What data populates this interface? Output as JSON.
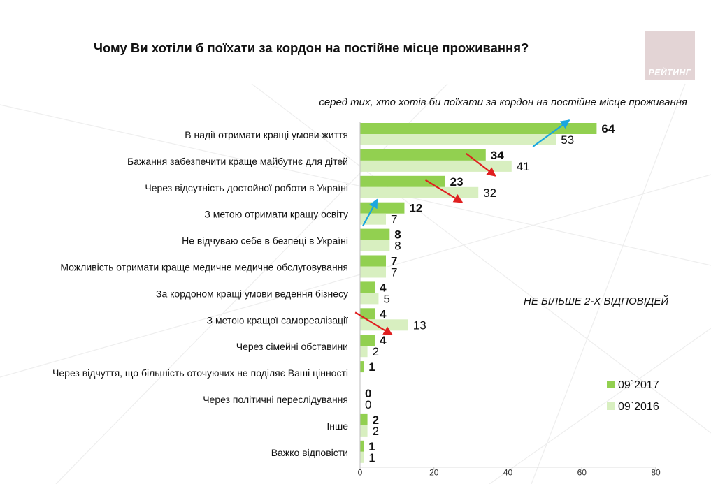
{
  "title": "Чому Ви хотіли б поїхати за кордон на постійне місце проживання?",
  "logo_text": "РЕЙТИНГ",
  "subtitle": "серед тих, хто хотів би поїхати за кордон на постійне місце проживання",
  "note": "НЕ БІЛЬШЕ 2-Х ВІДПОВІДЕЙ",
  "colors": {
    "series_2017": "#92d050",
    "series_2016": "#d8efc0",
    "arrow_up": "#1aa7e0",
    "arrow_down": "#e02020",
    "logo_bg": "#e3d4d5"
  },
  "chart_data": {
    "type": "bar",
    "orientation": "horizontal",
    "categories": [
      "В надії отримати кращі умови життя",
      "Бажання забезпечити краще майбутнє для дітей",
      "Через відсутність достойної роботи в Україні",
      "З метою отримати кращу освіту",
      "Не відчуваю себе в безпеці в Україні",
      "Можливість отримати краще медичне медичне обслуговування",
      "За кордоном кращі умови ведення бізнесу",
      "З метою кращої самореалізації",
      "Через сімейні обставини",
      "Через відчуття, що більшість оточуючих не поділяє Ваші цінності",
      "Через політичні переслідування",
      "Інше",
      "Важко відповісти"
    ],
    "series": [
      {
        "name": "09`2017",
        "values": [
          64,
          34,
          23,
          12,
          8,
          7,
          4,
          4,
          4,
          1,
          0,
          2,
          1
        ]
      },
      {
        "name": "09`2016",
        "values": [
          53,
          41,
          32,
          7,
          8,
          7,
          5,
          13,
          2,
          null,
          0,
          2,
          1
        ]
      }
    ],
    "trend_arrows": [
      {
        "category_index": 0,
        "direction": "up"
      },
      {
        "category_index": 1,
        "direction": "down"
      },
      {
        "category_index": 2,
        "direction": "down"
      },
      {
        "category_index": 3,
        "direction": "up"
      },
      {
        "category_index": 7,
        "direction": "down"
      }
    ],
    "xlim": [
      0,
      80
    ],
    "xticks": [
      "0",
      "20",
      "40",
      "60",
      "80"
    ],
    "legend_position": "bottom-right",
    "grid": false
  }
}
